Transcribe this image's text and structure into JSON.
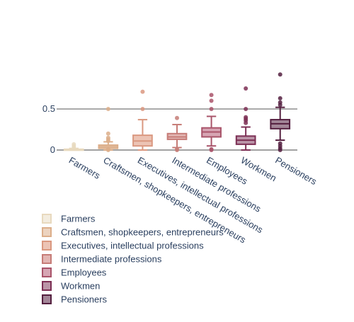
{
  "chart_data": {
    "type": "box",
    "title": "",
    "xlabel": "",
    "ylabel": "",
    "ylim": [
      -0.1,
      1.0
    ],
    "y_ticks": [
      0,
      0.5
    ],
    "y_tick_labels": [
      "0",
      "0.5"
    ],
    "grid": true,
    "legend_position": "bottom-left",
    "categories": [
      "Farmers",
      "Craftsmen, shopkeepers, entrepreneurs",
      "Executives, intellectual professions",
      "Intermediate professions",
      "Employees",
      "Workmen",
      "Pensioners"
    ],
    "series": [
      {
        "name": "Farmers",
        "color": "#e8d9be",
        "fill": "#f3ecdf",
        "min": 0.0,
        "q1": 0.0,
        "median": 0.0,
        "q3": 0.01,
        "max": 0.02,
        "outliers": [
          0.03,
          0.05,
          0.07
        ]
      },
      {
        "name": "Craftsmen, shopkeepers, entrepreneurs",
        "color": "#dcae8a",
        "fill": "#ecd3bf",
        "min": 0.0,
        "q1": 0.02,
        "median": 0.04,
        "q3": 0.06,
        "max": 0.1,
        "outliers": [
          0.0,
          0.01,
          0.11,
          0.13,
          0.15,
          0.2,
          0.5
        ]
      },
      {
        "name": "Executives, intellectual professions",
        "color": "#da9880",
        "fill": "#ecc3b4",
        "min": 0.0,
        "q1": 0.05,
        "median": 0.11,
        "q3": 0.18,
        "max": 0.37,
        "outliers": [
          0.5,
          0.71
        ]
      },
      {
        "name": "Intermediate professions",
        "color": "#c67c77",
        "fill": "#e3b6b3",
        "min": 0.03,
        "q1": 0.13,
        "median": 0.16,
        "q3": 0.2,
        "max": 0.31,
        "outliers": [
          0.0,
          0.01,
          0.39
        ]
      },
      {
        "name": "Employees",
        "color": "#a9546a",
        "fill": "#d6a5b3",
        "min": 0.05,
        "q1": 0.16,
        "median": 0.22,
        "q3": 0.27,
        "max": 0.41,
        "outliers": [
          0.0,
          0.01,
          0.5,
          0.6,
          0.67
        ]
      },
      {
        "name": "Workmen",
        "color": "#7c2f54",
        "fill": "#bb95a8",
        "min": 0.0,
        "q1": 0.07,
        "median": 0.12,
        "q3": 0.17,
        "max": 0.28,
        "outliers": [
          0.33,
          0.36,
          0.38,
          0.4,
          0.5,
          0.75
        ]
      },
      {
        "name": "Pensioners",
        "color": "#541f3f",
        "fill": "#a38698",
        "min": 0.12,
        "q1": 0.26,
        "median": 0.32,
        "q3": 0.37,
        "max": 0.52,
        "outliers": [
          0.0,
          0.02,
          0.05,
          0.08,
          0.55,
          0.58,
          0.63,
          0.92
        ]
      }
    ]
  }
}
